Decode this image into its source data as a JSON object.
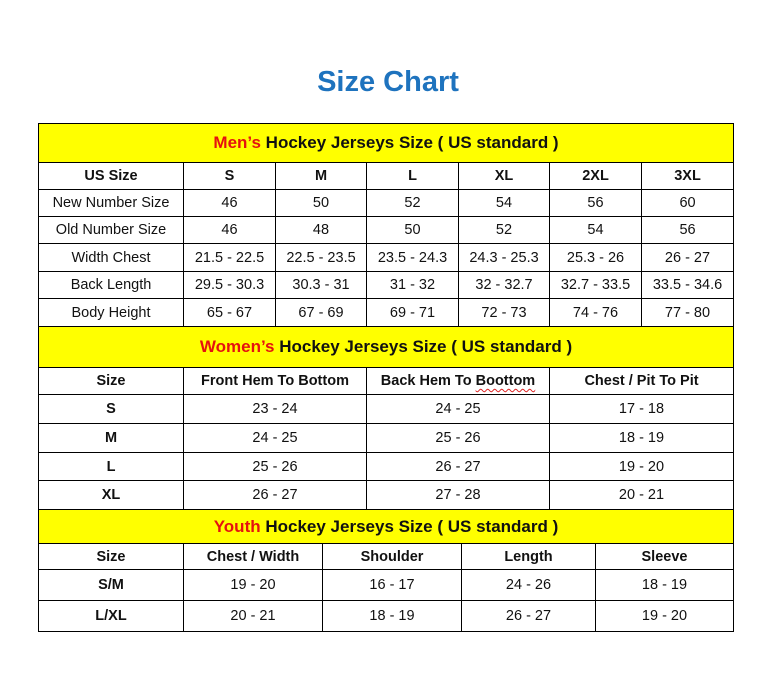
{
  "title": "Size Chart",
  "colors": {
    "title": "#1e73be",
    "banner_bg": "#ffff00",
    "highlight": "#e5120f"
  },
  "men": {
    "banner_highlight": "Men’s",
    "banner_rest": " Hockey Jerseys Size ( US standard )",
    "headers": [
      "US Size",
      "S",
      "M",
      "L",
      "XL",
      "2XL",
      "3XL"
    ],
    "rows": [
      [
        "New Number Size",
        "46",
        "50",
        "52",
        "54",
        "56",
        "60"
      ],
      [
        "Old Number Size",
        "46",
        "48",
        "50",
        "52",
        "54",
        "56"
      ],
      [
        "Width Chest",
        "21.5 - 22.5",
        "22.5 - 23.5",
        "23.5 - 24.3",
        "24.3 - 25.3",
        "25.3 - 26",
        "26 - 27"
      ],
      [
        "Back Length",
        "29.5 - 30.3",
        "30.3 - 31",
        "31 - 32",
        "32 - 32.7",
        "32.7 - 33.5",
        "33.5 - 34.6"
      ],
      [
        "Body Height",
        "65 - 67",
        "67 - 69",
        "69 - 71",
        "72 - 73",
        "74 - 76",
        "77 - 80"
      ]
    ]
  },
  "women": {
    "banner_highlight": "Women’s",
    "banner_rest": " Hockey Jerseys Size ( US standard )",
    "headers": [
      "Size",
      "Front Hem To Bottom",
      "Back Hem To Boottom",
      "Chest / Pit To Pit"
    ],
    "rows": [
      [
        "S",
        "23 - 24",
        "24 - 25",
        "17 - 18"
      ],
      [
        "M",
        "24 - 25",
        "25 - 26",
        "18 - 19"
      ],
      [
        "L",
        "25 - 26",
        "26 - 27",
        "19 - 20"
      ],
      [
        "XL",
        "26 - 27",
        "27 - 28",
        "20 - 21"
      ]
    ]
  },
  "youth": {
    "banner_highlight": "Youth",
    "banner_rest": " Hockey Jerseys Size ( US standard )",
    "headers": [
      "Size",
      "Chest / Width",
      "Shoulder",
      "Length",
      "Sleeve"
    ],
    "rows": [
      [
        "S/M",
        "19 - 20",
        "16 - 17",
        "24 - 26",
        "18 - 19"
      ],
      [
        "L/XL",
        "20 - 21",
        "18 - 19",
        "26 - 27",
        "19 - 20"
      ]
    ]
  }
}
